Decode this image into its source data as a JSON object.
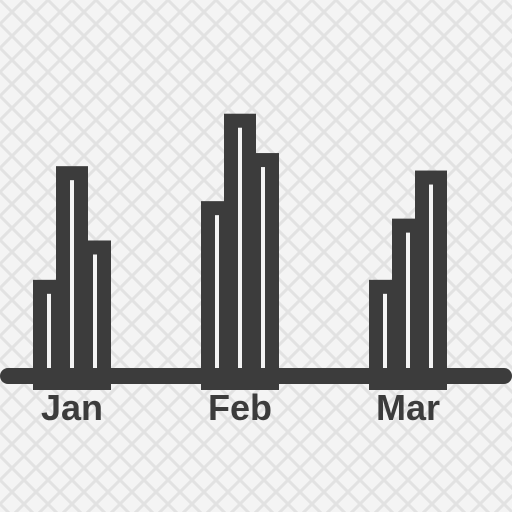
{
  "chart_data": {
    "type": "bar",
    "categories": [
      "Jan",
      "Feb",
      "Mar"
    ],
    "series": [
      {
        "values": [
          22,
          40,
          22
        ]
      },
      {
        "values": [
          48,
          60,
          36
        ]
      },
      {
        "values": [
          31,
          51,
          47
        ]
      }
    ],
    "ylim": [
      0,
      70
    ],
    "grid": false,
    "legend": "none"
  },
  "colors": {
    "ink": "#3c3c3c",
    "bar_fill": "#f4f4f4",
    "background": "#f4f4f4",
    "pattern": "#e2e2e2"
  }
}
